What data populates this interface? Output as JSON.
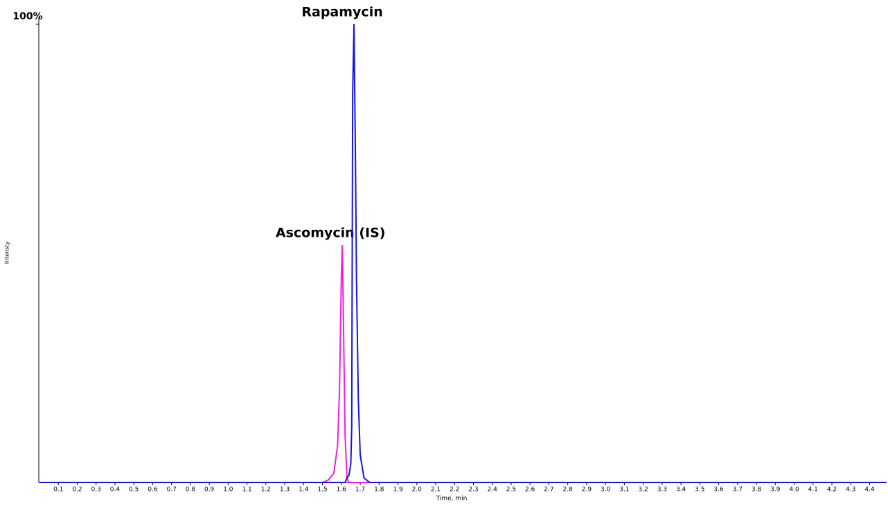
{
  "chart_data": {
    "type": "line",
    "x_label": "Time, min",
    "y_label": "Intensty",
    "x": [
      0,
      1.5,
      1.53,
      1.56,
      1.58,
      1.59,
      1.6,
      1.605,
      1.61,
      1.62,
      1.63,
      1.64,
      1.65,
      1.655,
      1.66,
      1.667,
      1.675,
      1.68,
      1.69,
      1.7,
      1.72,
      1.75,
      4.49
    ],
    "series": [
      {
        "name": "Ascomycin (IS)",
        "color": "#f01ee0",
        "values": [
          0,
          0,
          0.5,
          2,
          8,
          20,
          45,
          51.8,
          38,
          10,
          1,
          0,
          0,
          0,
          0,
          0,
          0,
          0,
          0,
          0,
          0,
          0,
          0
        ]
      },
      {
        "name": "Rapamycin",
        "color": "#1414e6",
        "values": [
          0,
          0,
          0,
          0,
          0,
          0,
          0,
          0,
          0,
          0,
          1,
          1.5,
          4,
          12,
          85,
          100,
          70,
          45,
          18,
          6,
          1,
          0,
          0
        ]
      }
    ],
    "xlim": [
      0,
      4.49
    ],
    "ylim": [
      0,
      100
    ],
    "xticks": [
      0.1,
      0.2,
      0.3,
      0.4,
      0.5,
      0.6,
      0.7,
      0.8,
      0.9,
      {
        "value": 1,
        "label": "1.0"
      },
      1.1,
      1.2,
      1.3,
      1.4,
      1.5,
      1.6,
      1.7,
      1.8,
      1.9,
      {
        "value": 2,
        "label": "2.0"
      },
      2.1,
      2.2,
      2.3,
      2.4,
      2.5,
      2.6,
      2.7,
      2.8,
      2.9,
      {
        "value": 3,
        "label": "3.0"
      },
      3.1,
      3.2,
      3.3,
      3.4,
      3.5,
      3.6,
      3.7,
      3.8,
      3.9,
      {
        "value": 4,
        "label": "4.0"
      },
      4.1,
      4.2,
      4.3,
      4.4
    ],
    "yticks": [
      {
        "value": 100,
        "label": "100%"
      }
    ]
  }
}
